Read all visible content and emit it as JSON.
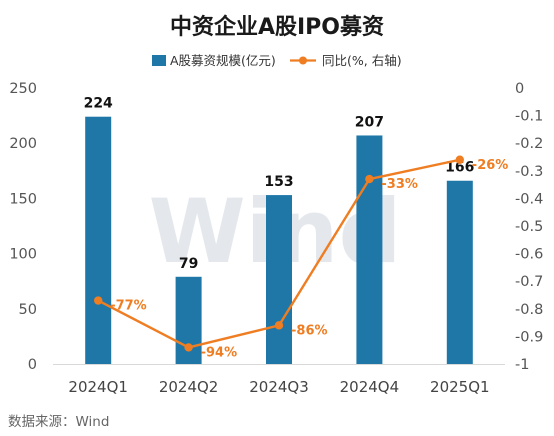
{
  "chart_data": {
    "type": "bar",
    "title": "中资企业A股IPO募资",
    "categories": [
      "2024Q1",
      "2024Q2",
      "2024Q3",
      "2024Q4",
      "2025Q1"
    ],
    "series": [
      {
        "name": "A股募资规模(亿元)",
        "type": "bar",
        "axis": "left",
        "color": "#1f77a8",
        "values": [
          224,
          79,
          153,
          207,
          166
        ],
        "labels": [
          "224",
          "79",
          "153",
          "207",
          "166"
        ]
      },
      {
        "name": "同比(%, 右轴)",
        "type": "line",
        "axis": "right",
        "color": "#ef7d22",
        "values": [
          -0.77,
          -0.94,
          -0.86,
          -0.33,
          -0.26
        ],
        "labels": [
          "-77%",
          "-94%",
          "-86%",
          "-33%",
          "-26%"
        ]
      }
    ],
    "y_left": {
      "range": [
        0,
        250
      ],
      "ticks": [
        0,
        50,
        100,
        150,
        200,
        250
      ],
      "tick_labels": [
        "0",
        "50",
        "100",
        "150",
        "200",
        "250"
      ]
    },
    "y_right": {
      "range": [
        -1,
        0
      ],
      "ticks": [
        0,
        -0.1,
        -0.2,
        -0.3,
        -0.4,
        -0.5,
        -0.6,
        -0.7,
        -0.8,
        -0.9,
        -1
      ],
      "tick_labels": [
        "0",
        "-0.1",
        "-0.2",
        "-0.3",
        "-0.4",
        "-0.5",
        "-0.6",
        "-0.7",
        "-0.8",
        "-0.9",
        "-1"
      ]
    },
    "legend_position": "top-center",
    "grid": false,
    "watermark": "Wind",
    "source": "数据来源：Wind"
  }
}
